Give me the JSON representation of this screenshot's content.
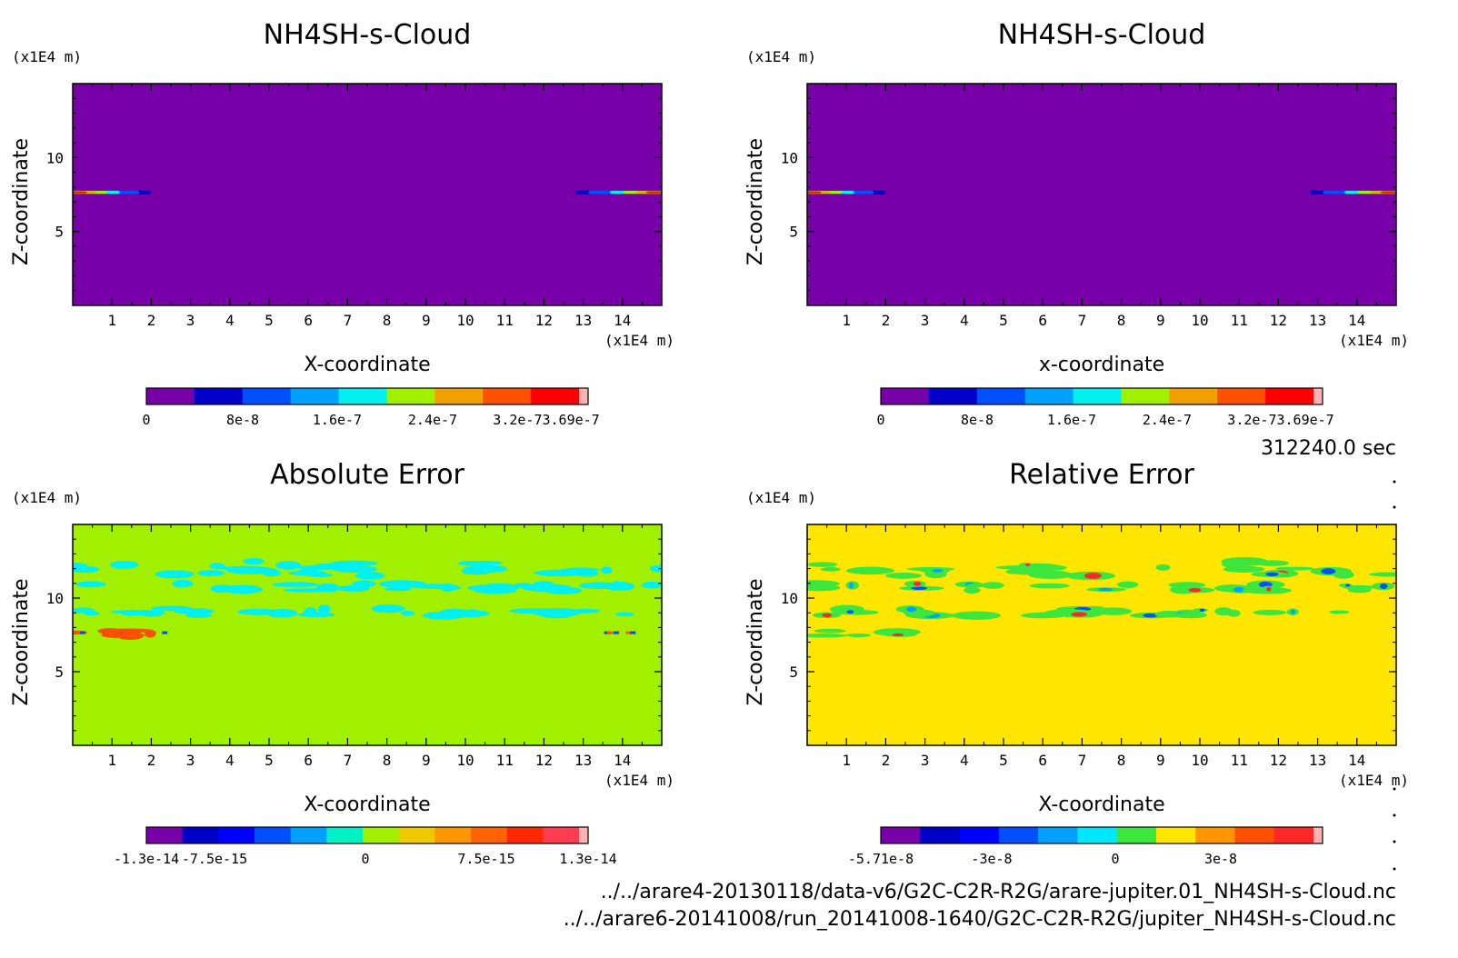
{
  "time_label": "312240.0 sec",
  "files": [
    "../../arare4-20130118/data-v6/G2C-C2R-R2G/arare-jupiter.01_NH4SH-s-Cloud.nc",
    "../../arare6-20141008/run_20141008-1640/G2C-C2R-R2G/jupiter_NH4SH-s-Cloud.nc"
  ],
  "chart_data": [
    {
      "type": "heatmap",
      "title": "NH4SH-s-Cloud",
      "xlabel": "X-coordinate",
      "ylabel": "Z-coordinate",
      "x_unit": "(x1E4 m)",
      "y_unit": "(x1E4 m)",
      "xlim": [
        0,
        15
      ],
      "ylim": [
        0,
        15
      ],
      "x_ticks": [
        "1",
        "2",
        "3",
        "4",
        "5",
        "6",
        "7",
        "8",
        "9",
        "10",
        "11",
        "12",
        "13",
        "14"
      ],
      "y_ticks": [
        "5",
        "10"
      ],
      "background_color": "#7800A8",
      "colorbar": {
        "colors": [
          "#7800A8",
          "#0000C8",
          "#0050FF",
          "#00A0FF",
          "#00F0F0",
          "#A0F000",
          "#F0A000",
          "#FF5000",
          "#FF0000",
          "#FFB4B4"
        ],
        "labels": [
          "0",
          "8e-8",
          "1.6e-7",
          "2.4e-7",
          "3.2e-73.69e-7"
        ]
      },
      "features": [
        {
          "x": [
            0,
            2
          ],
          "z": [
            7.5,
            7.8
          ],
          "max_value": 3.69e-07
        },
        {
          "x": [
            12.8,
            15
          ],
          "z": [
            7.5,
            7.8
          ],
          "max_value": 3.69e-07
        }
      ]
    },
    {
      "type": "heatmap",
      "title": "NH4SH-s-Cloud",
      "xlabel": "x-coordinate",
      "ylabel": "Z-coordinate",
      "x_unit": "(x1E4 m)",
      "y_unit": "(x1E4 m)",
      "xlim": [
        0,
        15
      ],
      "ylim": [
        0,
        15
      ],
      "x_ticks": [
        "1",
        "2",
        "3",
        "4",
        "5",
        "6",
        "7",
        "8",
        "9",
        "10",
        "11",
        "12",
        "13",
        "14"
      ],
      "y_ticks": [
        "5",
        "10"
      ],
      "background_color": "#7800A8",
      "colorbar": {
        "colors": [
          "#7800A8",
          "#0000C8",
          "#0050FF",
          "#00A0FF",
          "#00F0F0",
          "#A0F000",
          "#F0A000",
          "#FF5000",
          "#FF0000",
          "#FFB4B4"
        ],
        "labels": [
          "0",
          "8e-8",
          "1.6e-7",
          "2.4e-7",
          "3.2e-73.69e-7"
        ]
      },
      "features": [
        {
          "x": [
            0,
            2
          ],
          "z": [
            7.5,
            7.8
          ],
          "max_value": 3.69e-07
        },
        {
          "x": [
            12.8,
            15
          ],
          "z": [
            7.5,
            7.8
          ],
          "max_value": 3.69e-07
        }
      ]
    },
    {
      "type": "heatmap",
      "title": "Absolute Error",
      "xlabel": "X-coordinate",
      "ylabel": "Z-coordinate",
      "x_unit": "(x1E4 m)",
      "y_unit": "(x1E4 m)",
      "xlim": [
        0,
        15
      ],
      "ylim": [
        0,
        15
      ],
      "x_ticks": [
        "1",
        "2",
        "3",
        "4",
        "5",
        "6",
        "7",
        "8",
        "9",
        "10",
        "11",
        "12",
        "13",
        "14"
      ],
      "y_ticks": [
        "5",
        "10"
      ],
      "background_color": "#A0F000",
      "colorbar": {
        "colors": [
          "#7800A8",
          "#0000C8",
          "#0000FF",
          "#0050FF",
          "#00A0FF",
          "#00F0C8",
          "#A0F000",
          "#F0C800",
          "#FF9600",
          "#FF6400",
          "#FF2800",
          "#FF3C50",
          "#FFB4B4"
        ],
        "labels": [
          "-1.3e-14",
          "-7.5e-15",
          "0",
          "7.5e-15",
          "1.3e-14"
        ]
      },
      "features": [
        {
          "x": [
            0,
            15
          ],
          "z": [
            11.5,
            12.5
          ],
          "color": "#00F0F0"
        },
        {
          "x": [
            0,
            15
          ],
          "z": [
            10.5,
            11
          ],
          "color": "#00F0F0"
        },
        {
          "x": [
            0,
            15
          ],
          "z": [
            8.8,
            9.3
          ],
          "color": "#00F0F0"
        },
        {
          "x": [
            0,
            2.5
          ],
          "z": [
            7.4,
            7.8
          ],
          "color": "#FF5000"
        }
      ]
    },
    {
      "type": "heatmap",
      "title": "Relative Error",
      "xlabel": "X-coordinate",
      "ylabel": "Z-coordinate",
      "x_unit": "(x1E4 m)",
      "y_unit": "(x1E4 m)",
      "xlim": [
        0,
        15
      ],
      "ylim": [
        0,
        15
      ],
      "x_ticks": [
        "1",
        "2",
        "3",
        "4",
        "5",
        "6",
        "7",
        "8",
        "9",
        "10",
        "11",
        "12",
        "13",
        "14"
      ],
      "y_ticks": [
        "5",
        "10"
      ],
      "background_color": "#FFE600",
      "colorbar": {
        "colors": [
          "#7800A8",
          "#0000C8",
          "#0000FF",
          "#0050FF",
          "#00A0FF",
          "#00E6FF",
          "#3CE63C",
          "#FFE600",
          "#FF9600",
          "#FF5000",
          "#FF2828",
          "#FFB4B4"
        ],
        "labels": [
          "-5.71e-8",
          "-3e-8",
          "0",
          "3e-8"
        ]
      },
      "features": [
        {
          "x": [
            0,
            15
          ],
          "z": [
            11.5,
            12.5
          ],
          "color": "#3CE63C"
        },
        {
          "x": [
            0,
            15
          ],
          "z": [
            10.5,
            11
          ],
          "color": "#3CE63C"
        },
        {
          "x": [
            0,
            15
          ],
          "z": [
            8.8,
            9.3
          ],
          "color": "#3CE63C"
        },
        {
          "x": [
            0,
            2.5
          ],
          "z": [
            7.4,
            7.8
          ],
          "color": "#3CE63C"
        }
      ]
    }
  ]
}
